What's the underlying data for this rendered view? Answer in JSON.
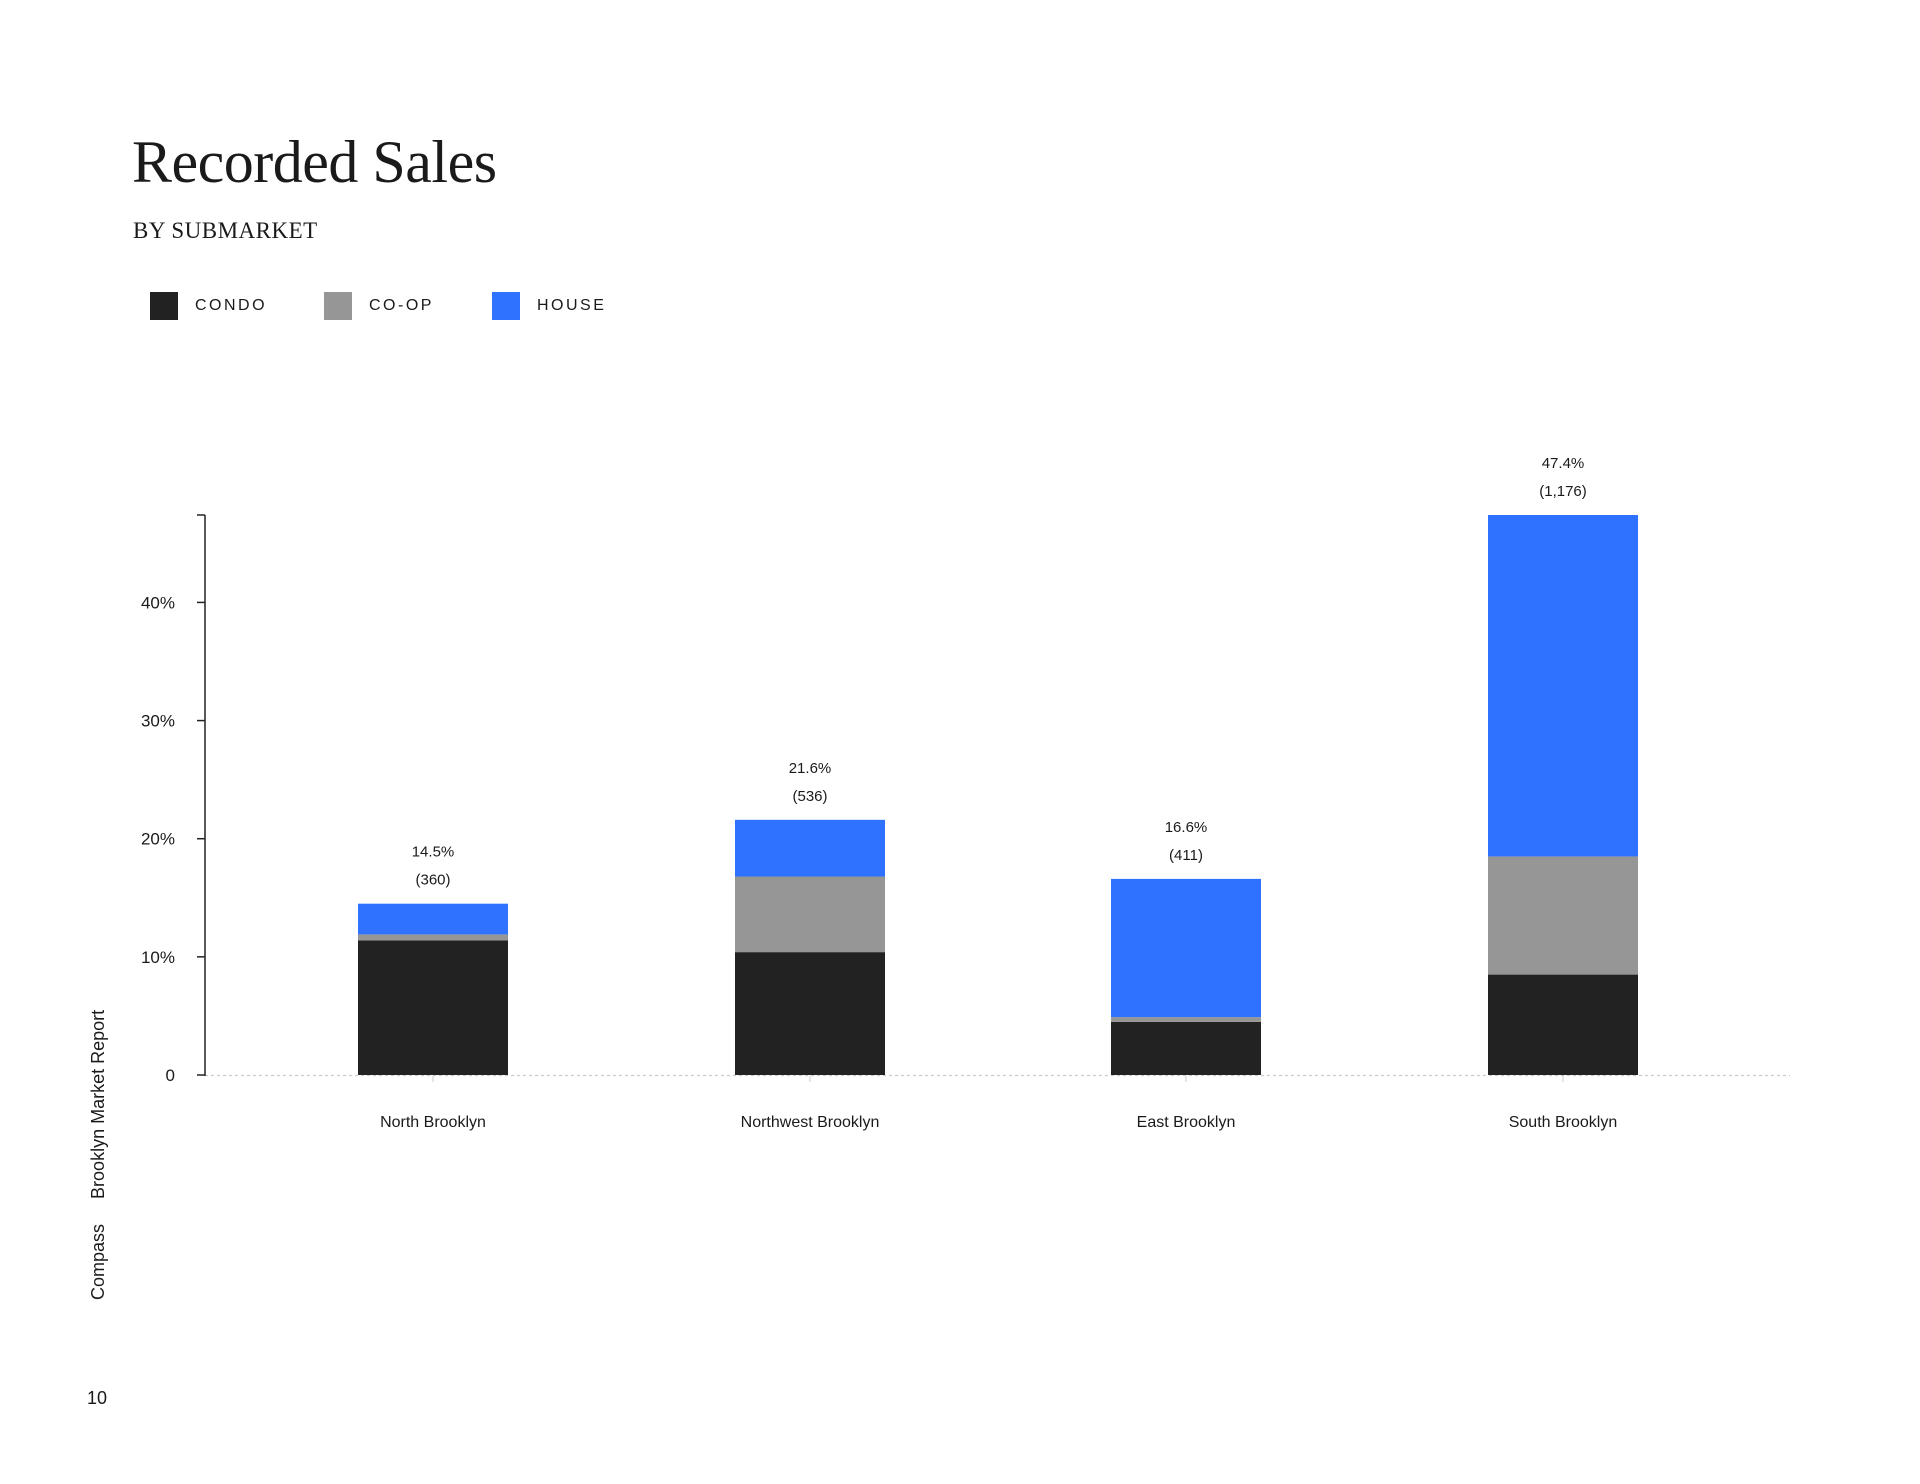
{
  "page": {
    "title": "Recorded Sales",
    "subtitle": "BY SUBMARKET",
    "side_report": "Brooklyn Market Report",
    "side_brand": "Compass",
    "page_number": "10"
  },
  "colors": {
    "condo": "#222222",
    "coop": "#969696",
    "house": "#2e72ff",
    "axis": "#222222",
    "baseline": "#cccccc"
  },
  "chart_data": {
    "type": "bar",
    "stacked": true,
    "categories": [
      "North Brooklyn",
      "Northwest Brooklyn",
      "East Brooklyn",
      "South Brooklyn"
    ],
    "series": [
      {
        "name": "CONDO",
        "color_key": "condo",
        "values": [
          11.4,
          10.4,
          4.5,
          8.5
        ]
      },
      {
        "name": "CO-OP",
        "color_key": "coop",
        "values": [
          0.5,
          6.4,
          0.4,
          10.0
        ]
      },
      {
        "name": "HOUSE",
        "color_key": "house",
        "values": [
          2.6,
          4.8,
          11.7,
          28.9
        ]
      }
    ],
    "totals": [
      {
        "percent": "14.5%",
        "count": "(360)"
      },
      {
        "percent": "21.6%",
        "count": "(536)"
      },
      {
        "percent": "16.6%",
        "count": "(411)"
      },
      {
        "percent": "47.4%",
        "count": "(1,176)"
      }
    ],
    "y_ticks": [
      {
        "value": 0,
        "label": "0"
      },
      {
        "value": 10,
        "label": "10%"
      },
      {
        "value": 20,
        "label": "20%"
      },
      {
        "value": 30,
        "label": "30%"
      },
      {
        "value": 40,
        "label": "40%"
      }
    ],
    "ylim": [
      0,
      47.4
    ],
    "legend_position": "top-left",
    "grid": false
  }
}
